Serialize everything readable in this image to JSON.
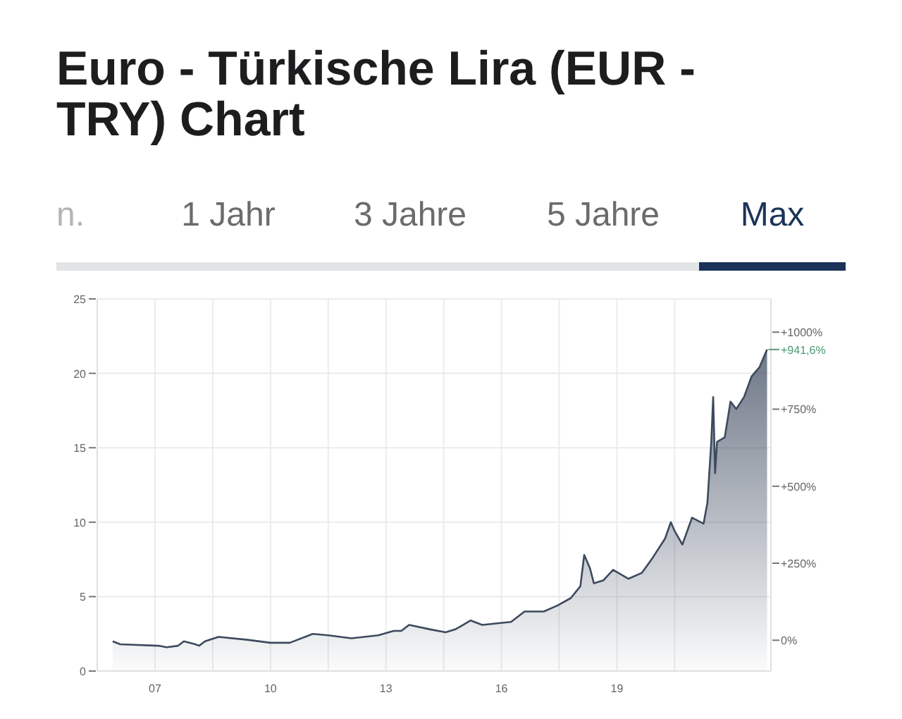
{
  "chart_data": {
    "type": "area",
    "title": "Euro - Türkische Lira (EUR - TRY) Chart",
    "annotations": [
      "n.",
      "1 Jahr",
      "3 Jahre",
      "5 Jahre",
      "Max",
      {
        "text": "+941,6%",
        "x": 2022.9,
        "y": 21.6
      }
    ],
    "x": [
      2005.9,
      2006.1,
      2007.1,
      2007.3,
      2007.6,
      2007.75,
      2008.05,
      2008.15,
      2008.3,
      2008.65,
      2009.4,
      2010.0,
      2010.5,
      2011.1,
      2011.5,
      2012.1,
      2012.8,
      2013.2,
      2013.4,
      2013.6,
      2014.15,
      2014.55,
      2014.8,
      2015.0,
      2015.2,
      2015.5,
      2016.25,
      2016.6,
      2017.1,
      2017.45,
      2017.8,
      2018.05,
      2018.15,
      2018.3,
      2018.4,
      2018.65,
      2018.9,
      2019.3,
      2019.65,
      2019.9,
      2020.25,
      2020.4,
      2020.5,
      2020.7,
      2020.95,
      2021.25,
      2021.35,
      2021.45,
      2021.5,
      2021.55,
      2021.6,
      2021.8,
      2021.95,
      2022.1,
      2022.3,
      2022.5,
      2022.7,
      2022.9
    ],
    "series": [
      {
        "color": "#3d4a5e",
        "values": [
          2.0,
          1.8,
          1.7,
          1.6,
          1.7,
          2.0,
          1.8,
          1.7,
          2.0,
          2.3,
          2.1,
          1.9,
          1.9,
          2.5,
          2.4,
          2.2,
          2.4,
          2.7,
          2.7,
          3.1,
          2.8,
          2.6,
          2.8,
          3.1,
          3.4,
          3.1,
          3.3,
          4.0,
          4.0,
          4.4,
          4.9,
          5.7,
          7.8,
          6.9,
          5.9,
          6.1,
          6.8,
          6.2,
          6.6,
          7.5,
          8.9,
          10.0,
          9.4,
          8.5,
          10.3,
          9.9,
          11.3,
          15.4,
          18.4,
          13.3,
          15.4,
          15.7,
          18.1,
          17.6,
          18.4,
          19.8,
          20.4,
          21.6
        ]
      }
    ],
    "xlim": [
      2005.5,
      2023
    ],
    "xticks": [
      {
        "value": 2007,
        "label": "07"
      },
      {
        "value": 2008.5,
        "label": null
      },
      {
        "value": 2010,
        "label": "10"
      },
      {
        "value": 2011.5,
        "label": null
      },
      {
        "value": 2013,
        "label": "13"
      },
      {
        "value": 2014.5,
        "label": null
      },
      {
        "value": 2016,
        "label": "16"
      },
      {
        "value": 2017.5,
        "label": null
      },
      {
        "value": 2019,
        "label": "19"
      },
      {
        "value": 2020.5,
        "label": null
      }
    ],
    "ylim": [
      0,
      25
    ],
    "yticks": [
      0,
      5,
      10,
      15,
      20,
      25
    ],
    "y2lim": [
      -100,
      1108
    ],
    "y2ticks": [
      {
        "value": 0,
        "label": "0%"
      },
      {
        "value": 250,
        "label": "+250%"
      },
      {
        "value": 500,
        "label": "+500%"
      },
      {
        "value": 750,
        "label": "+750%"
      },
      {
        "value": 1000,
        "label": "+1000%"
      }
    ],
    "grid": true
  }
}
